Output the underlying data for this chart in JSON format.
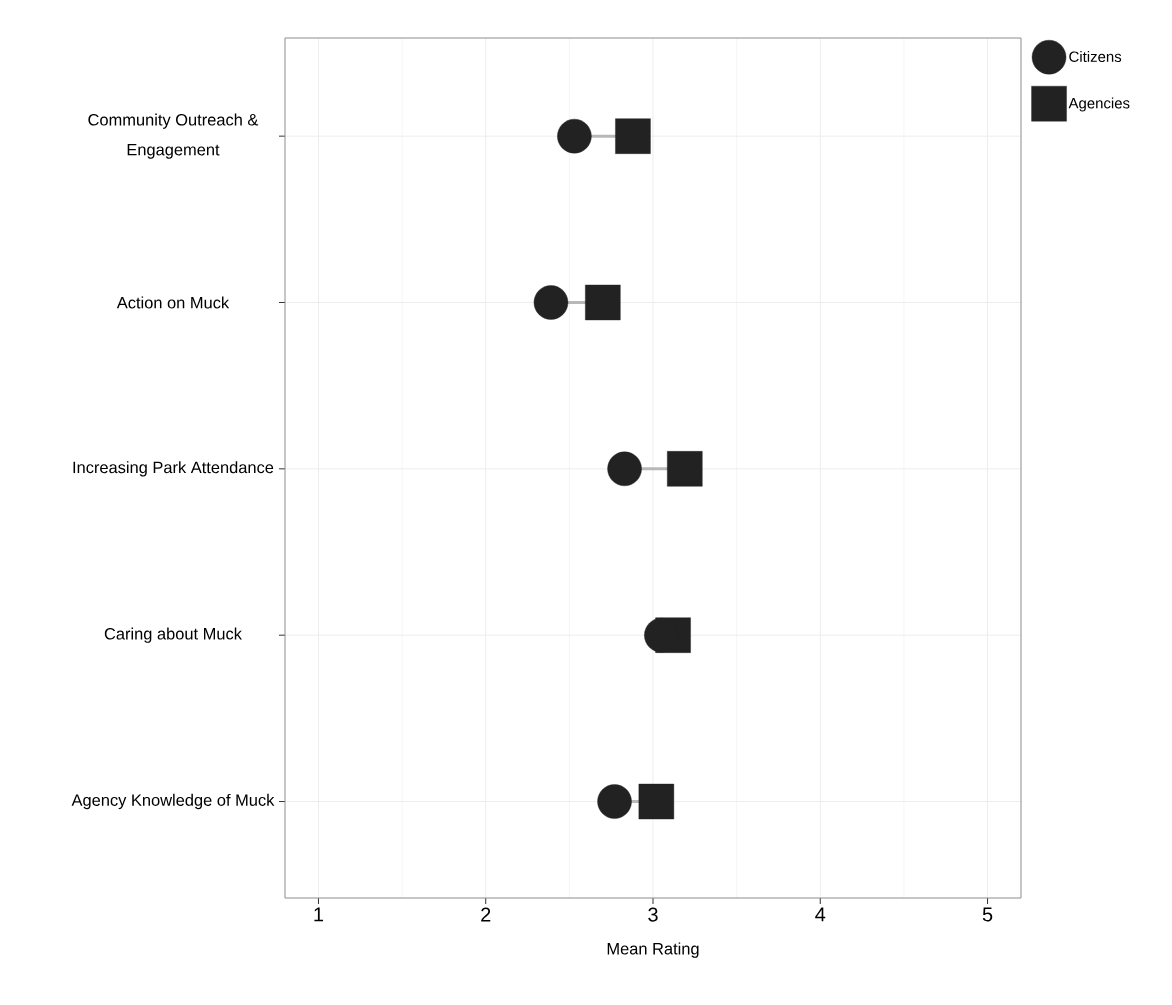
{
  "chart_data": {
    "type": "scatter",
    "orientation": "horizontal",
    "xlabel": "Mean Rating",
    "categories": [
      "Community Outreach & Engagement",
      "Action on Muck",
      "Increasing Park Attendance",
      "Caring about Muck",
      "Agency Knowledge of Muck"
    ],
    "series": [
      {
        "name": "Citizens",
        "color": "#222222",
        "marker": "circle",
        "values": [
          2.53,
          2.39,
          2.83,
          3.05,
          2.77
        ]
      },
      {
        "name": "Agencies",
        "color": "#222222",
        "marker": "square",
        "values": [
          2.88,
          2.7,
          3.19,
          3.12,
          3.02
        ]
      }
    ],
    "xlim": [
      0.8,
      5.2
    ],
    "xticks": [
      1,
      2,
      3,
      4,
      5
    ],
    "grid": true,
    "legend": "top right"
  }
}
